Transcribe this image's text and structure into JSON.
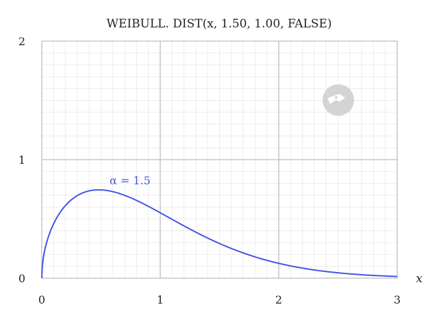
{
  "chart_data": {
    "type": "line",
    "title": "WEIBULL. DIST(x, 1.50, 1.00, FALSE)",
    "xlabel": "x",
    "ylabel": "",
    "xlim": [
      0,
      3
    ],
    "ylim": [
      0,
      2
    ],
    "x_ticks": [
      "0",
      "1",
      "2",
      "3"
    ],
    "y_ticks": [
      "0",
      "1",
      "2"
    ],
    "grid": true,
    "colors": {
      "series": "#4455e6",
      "major_grid": "#bdbdbd",
      "minor_grid": "#ececec",
      "logo": "#d4d4d4"
    },
    "series": [
      {
        "name": "α = 1.5",
        "x": [
          0,
          0.01,
          0.05,
          0.1,
          0.2,
          0.3,
          0.4,
          0.5,
          0.6,
          0.7,
          0.8,
          0.9,
          1.0,
          1.2,
          1.4,
          1.6,
          1.8,
          2.0,
          2.2,
          2.4,
          2.6,
          2.8,
          3.0
        ],
        "y": [
          0,
          0.149,
          0.331,
          0.461,
          0.612,
          0.699,
          0.742,
          0.744,
          0.687,
          0.692,
          0.655,
          0.607,
          0.552,
          0.441,
          0.339,
          0.252,
          0.181,
          0.127,
          0.085,
          0.056,
          0.036,
          0.022,
          0.013
        ]
      }
    ]
  }
}
